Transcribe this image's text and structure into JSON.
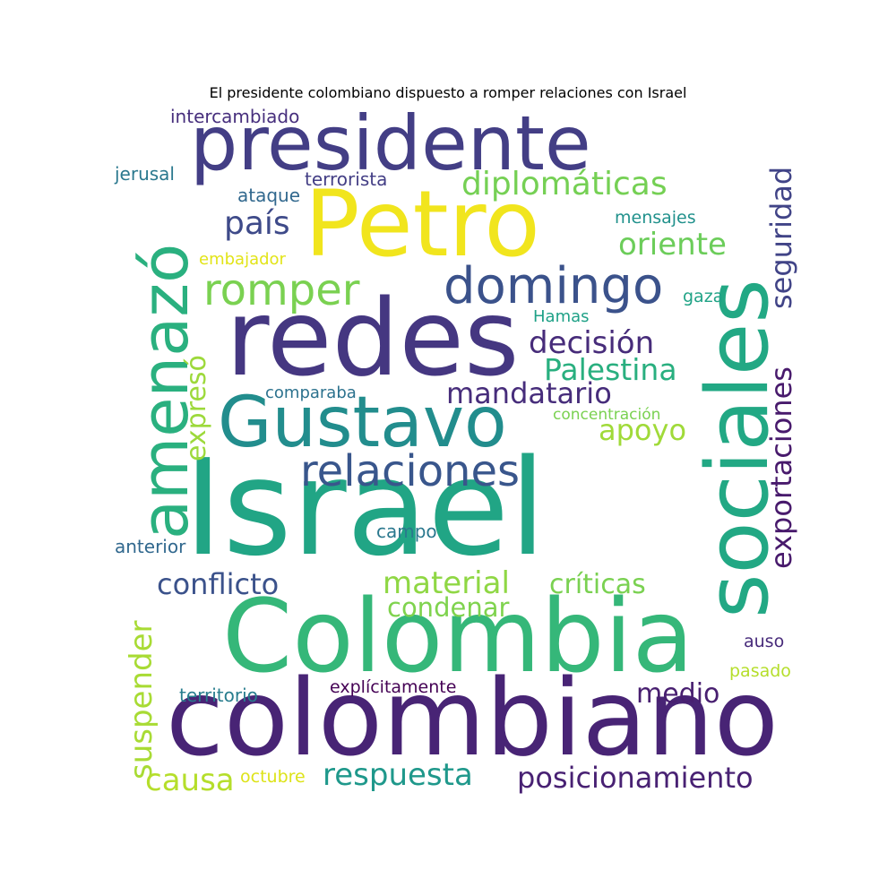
{
  "title": "El presidente colombiano dispuesto a romper relaciones con Israel",
  "words": [
    {
      "text": "Israel",
      "color": "#21a585"
    },
    {
      "text": "colombiano",
      "color": "#482475"
    },
    {
      "text": "Colombia",
      "color": "#35b779"
    },
    {
      "text": "redes",
      "color": "#453781"
    },
    {
      "text": "sociales",
      "color": "#22a884"
    },
    {
      "text": "Petro",
      "color": "#f1e51d"
    },
    {
      "text": "presidente",
      "color": "#433e85"
    },
    {
      "text": "Gustavo",
      "color": "#228d8d"
    },
    {
      "text": "amenazó",
      "color": "#2ab07f"
    },
    {
      "text": "domingo",
      "color": "#3b528b"
    },
    {
      "text": "relaciones",
      "color": "#39568c"
    },
    {
      "text": "romper",
      "color": "#7ad151"
    },
    {
      "text": "diplomáticas",
      "color": "#75d054"
    },
    {
      "text": "oriente",
      "color": "#6ccd5a"
    },
    {
      "text": "país",
      "color": "#3e4a89"
    },
    {
      "text": "seguridad",
      "color": "#414487"
    },
    {
      "text": "decisión",
      "color": "#472c7a"
    },
    {
      "text": "Palestina",
      "color": "#29af7f"
    },
    {
      "text": "mandatario",
      "color": "#472d7b"
    },
    {
      "text": "apoyo",
      "color": "#a0da39"
    },
    {
      "text": "exportaciones",
      "color": "#481a6c"
    },
    {
      "text": "expresó",
      "color": "#9dd93b"
    },
    {
      "text": "conflicto",
      "color": "#3b528b"
    },
    {
      "text": "material",
      "color": "#8fd744"
    },
    {
      "text": "críticas",
      "color": "#7ad151"
    },
    {
      "text": "condenar",
      "color": "#7fd34e"
    },
    {
      "text": "suspender",
      "color": "#a8db34"
    },
    {
      "text": "medio",
      "color": "#481f70"
    },
    {
      "text": "causa",
      "color": "#b5de2b"
    },
    {
      "text": "respuesta",
      "color": "#1f988b"
    },
    {
      "text": "posicionamiento",
      "color": "#482173"
    },
    {
      "text": "intercambiado",
      "color": "#472f7d"
    },
    {
      "text": "terrorista",
      "color": "#433e85"
    },
    {
      "text": "jerusal",
      "color": "#2a788e"
    },
    {
      "text": "ataque",
      "color": "#31688e"
    },
    {
      "text": "mensajes",
      "color": "#21918c"
    },
    {
      "text": "embajador",
      "color": "#e2e418"
    },
    {
      "text": "gaza",
      "color": "#20a386"
    },
    {
      "text": "Hamas",
      "color": "#1fa187"
    },
    {
      "text": "comparaba",
      "color": "#2c728e"
    },
    {
      "text": "concentración",
      "color": "#7ad151"
    },
    {
      "text": "campo",
      "color": "#2a788e"
    },
    {
      "text": "anterior",
      "color": "#31688e"
    },
    {
      "text": "auso",
      "color": "#472a7a"
    },
    {
      "text": "pasado",
      "color": "#b5de2b"
    },
    {
      "text": "territorio",
      "color": "#287d8e"
    },
    {
      "text": "explícitamente",
      "color": "#440154"
    },
    {
      "text": "octubre",
      "color": "#dde318"
    }
  ]
}
